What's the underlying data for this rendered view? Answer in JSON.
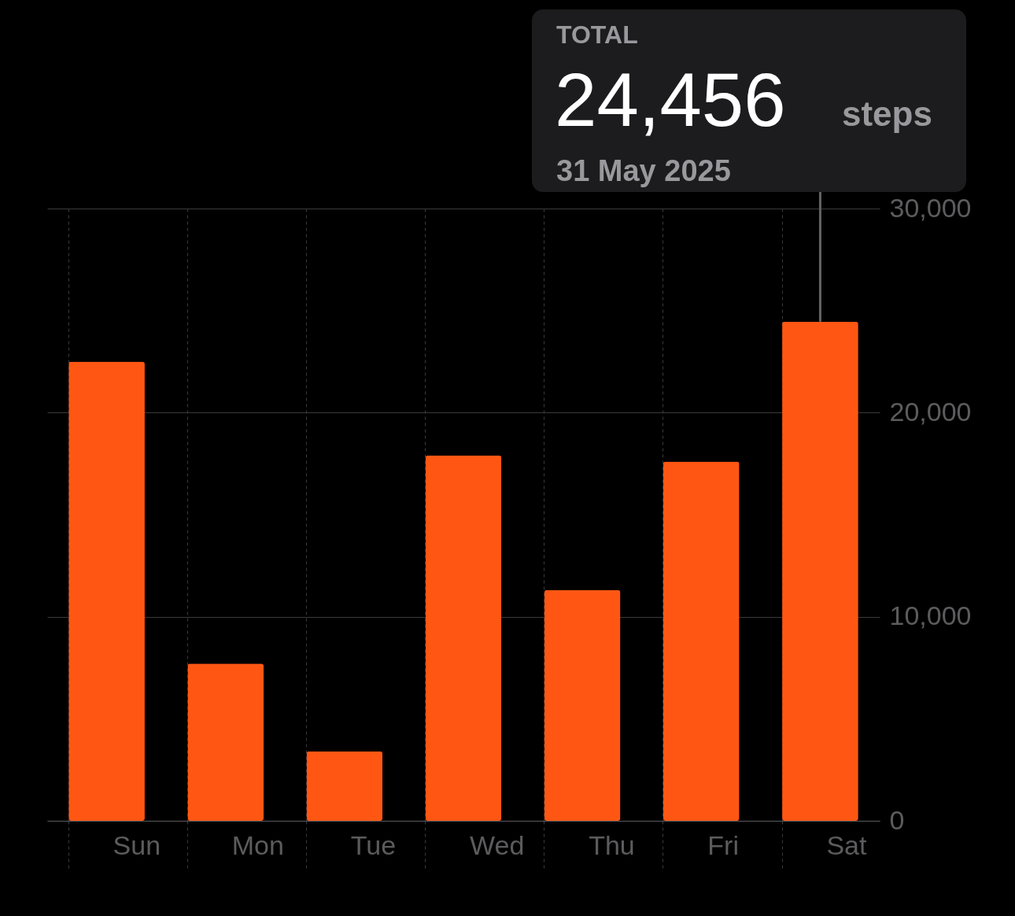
{
  "chart_data": {
    "type": "bar",
    "categories": [
      "Sun",
      "Mon",
      "Tue",
      "Wed",
      "Thu",
      "Fri",
      "Sat"
    ],
    "values": [
      22500,
      7700,
      3400,
      17900,
      11300,
      17600,
      24456
    ],
    "color": "#ff5713",
    "ylim": [
      0,
      30000
    ],
    "yticks": [
      {
        "value": 0,
        "label": "0"
      },
      {
        "value": 10000,
        "label": "10,000"
      },
      {
        "value": 20000,
        "label": "20,000"
      },
      {
        "value": 30000,
        "label": "30,000"
      }
    ],
    "grid": true,
    "annotations": [
      "TOTAL",
      {
        "text": "24,456",
        "x": "Sat",
        "y": 24456
      },
      "steps",
      "31 May 2025"
    ]
  }
}
